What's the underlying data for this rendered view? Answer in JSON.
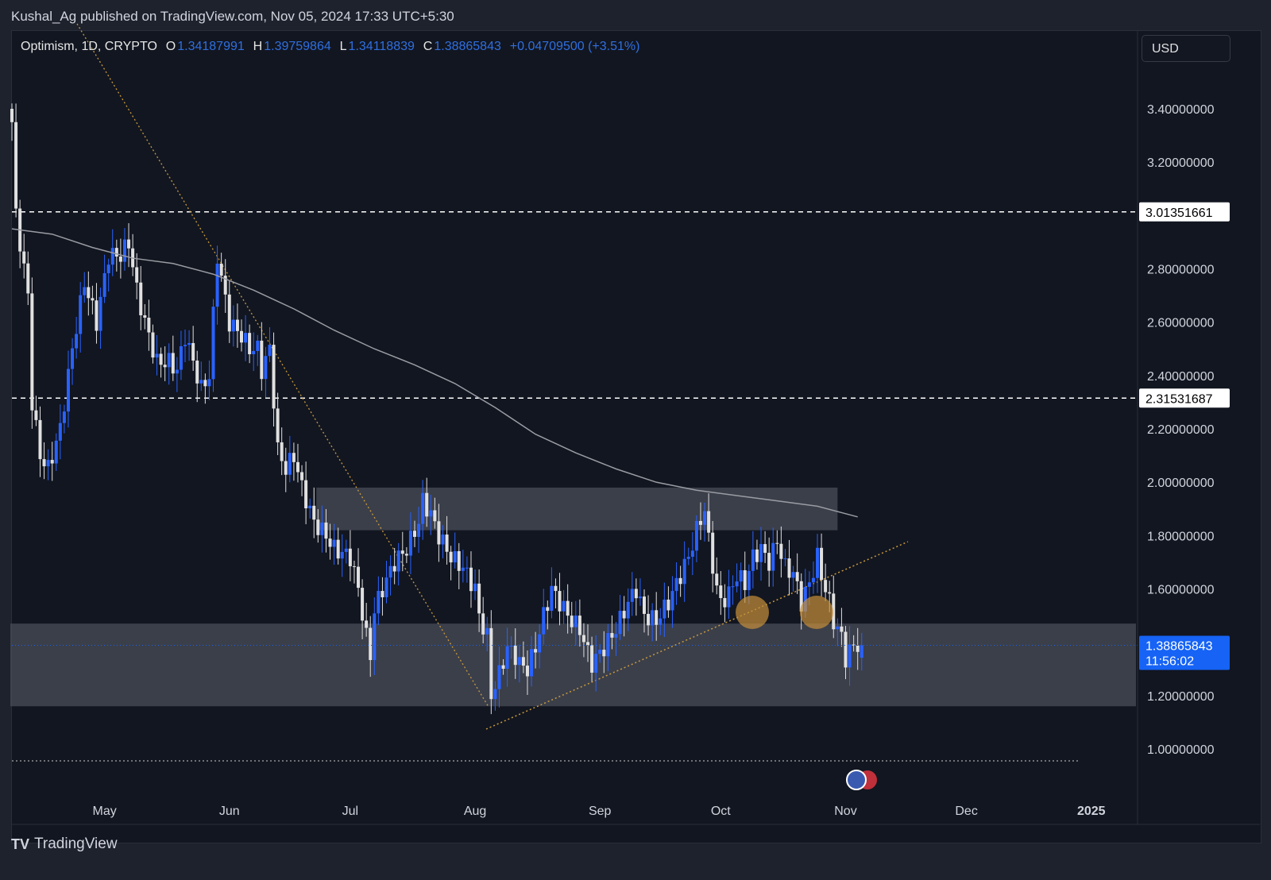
{
  "header": "Kushal_Ag published on TradingView.com, Nov 05, 2024 17:33 UTC+5:30",
  "legend": {
    "symbol": "Optimism, 1D, CRYPTO",
    "o_label": "O",
    "o": "1.34187991",
    "h_label": "H",
    "h": "1.39759864",
    "l_label": "L",
    "l": "1.34118839",
    "c_label": "C",
    "c": "1.38865843",
    "change": "+0.04709500 (+3.51%)"
  },
  "currency_button": "USD",
  "brand": "TradingView",
  "colors": {
    "up": "#2962ff",
    "down": "#e0e0e0",
    "bg": "#121620",
    "zone": "#4a4e58",
    "trend": "#c89a40",
    "sma": "#9a9ca3",
    "last": "#1663f5"
  },
  "chart_data": {
    "type": "candlestick",
    "title": "Optimism, 1D, CRYPTO",
    "ylim": [
      0.9,
      3.55
    ],
    "y_ticks": [
      "3.40000000",
      "3.20000000",
      "2.80000000",
      "2.60000000",
      "2.40000000",
      "2.20000000",
      "2.00000000",
      "1.80000000",
      "1.60000000",
      "1.20000000",
      "1.00000000"
    ],
    "y_tick_values": [
      3.4,
      3.2,
      2.8,
      2.6,
      2.4,
      2.2,
      2.0,
      1.8,
      1.6,
      1.2,
      1.0
    ],
    "x_ticks": [
      "May",
      "Jun",
      "Jul",
      "Aug",
      "Sep",
      "Oct",
      "Nov",
      "Dec",
      "2025"
    ],
    "x_tick_days": [
      23,
      54,
      84,
      115,
      146,
      176,
      207,
      237,
      268
    ],
    "close_keypoints_day": [
      0,
      1,
      2,
      4,
      5,
      7,
      9,
      12,
      15,
      18,
      21,
      24,
      27,
      29,
      31,
      33,
      36,
      39,
      41,
      43,
      45,
      47,
      49,
      51,
      54,
      57,
      59,
      61,
      62,
      64,
      66,
      68,
      70,
      72,
      75,
      78,
      80,
      84,
      86,
      88,
      89,
      90,
      92,
      95,
      98,
      101,
      102,
      104,
      106,
      109,
      112,
      115,
      116,
      118,
      119,
      121,
      123,
      125,
      126,
      128,
      130,
      132,
      134,
      136,
      139,
      141,
      143,
      144,
      147,
      150,
      153,
      155,
      157,
      160,
      163,
      165,
      168,
      170,
      172,
      173,
      175,
      176,
      178,
      180,
      182,
      184,
      186,
      188,
      190,
      192,
      194,
      196,
      198,
      200,
      201,
      203,
      204,
      205,
      206,
      207,
      209,
      210,
      211
    ],
    "close_keypoints": [
      3.35,
      3.0,
      2.9,
      2.7,
      2.3,
      2.1,
      2.05,
      2.2,
      2.5,
      2.75,
      2.6,
      2.85,
      2.85,
      2.9,
      2.72,
      2.6,
      2.45,
      2.45,
      2.42,
      2.55,
      2.45,
      2.35,
      2.4,
      2.85,
      2.6,
      2.55,
      2.5,
      2.5,
      2.42,
      2.5,
      2.12,
      2.05,
      2.1,
      1.98,
      1.85,
      1.8,
      1.75,
      1.72,
      1.6,
      1.42,
      1.35,
      1.52,
      1.6,
      1.7,
      1.75,
      1.85,
      1.93,
      1.88,
      1.8,
      1.72,
      1.68,
      1.6,
      1.5,
      1.42,
      1.2,
      1.28,
      1.38,
      1.35,
      1.32,
      1.3,
      1.38,
      1.5,
      1.6,
      1.55,
      1.48,
      1.45,
      1.36,
      1.32,
      1.38,
      1.45,
      1.55,
      1.6,
      1.5,
      1.48,
      1.55,
      1.62,
      1.72,
      1.82,
      1.9,
      1.78,
      1.6,
      1.55,
      1.58,
      1.65,
      1.62,
      1.72,
      1.75,
      1.7,
      1.78,
      1.68,
      1.66,
      1.55,
      1.62,
      1.72,
      1.65,
      1.55,
      1.48,
      1.45,
      1.42,
      1.34,
      1.389,
      1.389,
      1.389
    ],
    "sma_keypoints_day": [
      0,
      10,
      20,
      30,
      40,
      50,
      60,
      70,
      80,
      90,
      100,
      110,
      120,
      130,
      140,
      150,
      160,
      170,
      180,
      190,
      200,
      210
    ],
    "sma_keypoints": [
      2.95,
      2.93,
      2.88,
      2.84,
      2.82,
      2.78,
      2.72,
      2.65,
      2.57,
      2.5,
      2.44,
      2.37,
      2.28,
      2.18,
      2.11,
      2.05,
      2.0,
      1.97,
      1.95,
      1.93,
      1.91,
      1.87
    ],
    "horizontal_levels": [
      "3.01351661",
      "2.31531687"
    ],
    "horizontal_level_values": [
      3.01351661,
      2.31531687
    ],
    "zones": [
      {
        "from_day": 76,
        "to_day": 205,
        "top": 1.98,
        "bottom": 1.82
      },
      {
        "from_day": 0,
        "to_day": 280,
        "top": 1.47,
        "bottom": 1.16
      }
    ],
    "last_price": "1.38865843",
    "countdown": "11:56:02"
  }
}
